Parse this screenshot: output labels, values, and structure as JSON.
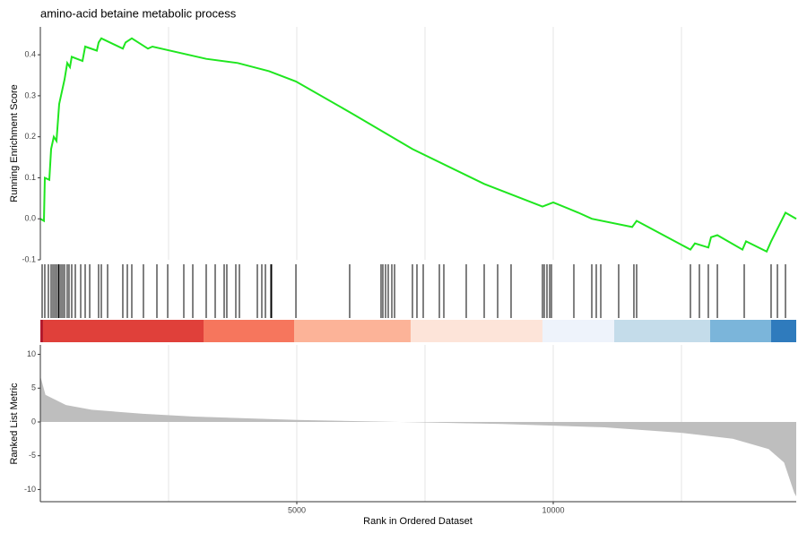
{
  "chart_data": [
    {
      "type": "line",
      "title": "amino-acid betaine metabolic process",
      "ylabel": "Running Enrichment Score",
      "color": "#1fe61f",
      "x": [
        0,
        70,
        87,
        175,
        210,
        262,
        315,
        367,
        420,
        472,
        524,
        577,
        612,
        822,
        874,
        1101,
        1136,
        1189,
        1608,
        1661,
        1783,
        2098,
        2185,
        3234,
        3846,
        4458,
        4983,
        6031,
        7255,
        8654,
        9790,
        10000,
        10490,
        10752,
        11538,
        11626,
        12675,
        12762,
        13024,
        13077,
        13200,
        13689,
        13759,
        14161,
        14248,
        14388,
        14528,
        14738
      ],
      "values": [
        0.0,
        -0.005,
        0.1,
        0.095,
        0.17,
        0.2,
        0.19,
        0.28,
        0.31,
        0.34,
        0.38,
        0.37,
        0.395,
        0.385,
        0.42,
        0.41,
        0.43,
        0.44,
        0.415,
        0.43,
        0.44,
        0.415,
        0.42,
        0.39,
        0.38,
        0.36,
        0.335,
        0.26,
        0.17,
        0.085,
        0.03,
        0.04,
        0.015,
        0.0,
        -0.02,
        -0.005,
        -0.075,
        -0.06,
        -0.07,
        -0.045,
        -0.04,
        -0.075,
        -0.055,
        -0.08,
        -0.055,
        -0.02,
        0.015,
        0.0
      ],
      "xlim": [
        0,
        14738
      ],
      "ylim": [
        -0.1,
        0.468
      ],
      "yticks": [
        -0.1,
        {
          "value": 0,
          "label": "0.0"
        },
        0.1,
        0.2,
        0.3,
        0.4
      ],
      "xgrid": [
        2500,
        5000,
        7500,
        10000,
        12500
      ]
    },
    {
      "type": "rug",
      "color": "#000000",
      "hits": [
        35,
        87,
        157,
        210,
        245,
        280,
        315,
        350,
        367,
        402,
        437,
        472,
        524,
        559,
        612,
        682,
        787,
        874,
        962,
        1136,
        1189,
        1311,
        1608,
        1696,
        1783,
        2010,
        2273,
        2483,
        2797,
        2972,
        3234,
        3409,
        3584,
        3636,
        3811,
        3881,
        4231,
        4318,
        4388,
        4493,
        4510,
        4983,
        6031,
        6643,
        6678,
        6731,
        6783,
        6853,
        6906,
        7255,
        7343,
        7465,
        7780,
        7867,
        8304,
        8654,
        8916,
        9178,
        9790,
        9825,
        9878,
        9930,
        9965,
        10402,
        10752,
        10839,
        10927,
        11276,
        11573,
        11626,
        12675,
        12850,
        13024,
        13200,
        13724,
        14248,
        14371,
        14528
      ],
      "xlim": [
        0,
        14738
      ],
      "bands": [
        {
          "start": 0,
          "end": 52,
          "color": "#b2182b"
        },
        {
          "start": 52,
          "end": 3182,
          "color": "#e0403a"
        },
        {
          "start": 3182,
          "end": 4948,
          "color": "#f6765d"
        },
        {
          "start": 4948,
          "end": 7220,
          "color": "#fcb398"
        },
        {
          "start": 7220,
          "end": 9790,
          "color": "#fde4d9"
        },
        {
          "start": 9790,
          "end": 11189,
          "color": "#eef3fb"
        },
        {
          "start": 11189,
          "end": 13059,
          "color": "#c4dcea"
        },
        {
          "start": 13059,
          "end": 14248,
          "color": "#7bb5da"
        },
        {
          "start": 14248,
          "end": 14738,
          "color": "#2f7bbd"
        }
      ]
    },
    {
      "type": "area",
      "ylabel": "Ranked List Metric",
      "xlabel": "Rank in Ordered Dataset",
      "color": "#bebebe",
      "x": [
        0,
        100,
        500,
        1000,
        2000,
        3000,
        5000,
        7000,
        9000,
        11000,
        12500,
        13500,
        14200,
        14500,
        14700,
        14738
      ],
      "values": [
        6.8,
        4,
        2.5,
        1.8,
        1.2,
        0.8,
        0.3,
        0,
        -0.3,
        -0.8,
        -1.6,
        -2.5,
        -4,
        -6,
        -10.5,
        -11
      ],
      "xlim": [
        0,
        14738
      ],
      "ylim": [
        -11.8,
        11.4
      ],
      "yticks": [
        -10,
        -5,
        0,
        5,
        10
      ],
      "xticks": [
        5000,
        10000
      ],
      "xgrid": [
        2500,
        5000,
        7500,
        10000,
        12500
      ]
    }
  ]
}
